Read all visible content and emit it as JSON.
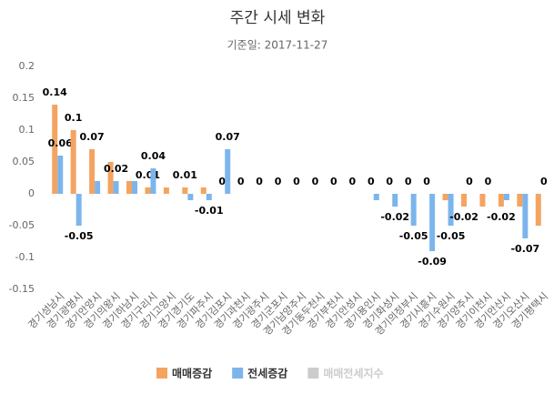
{
  "chart_data": {
    "type": "bar",
    "title": "주간 시세 변화",
    "subtitle": "기준일: 2017-11-27",
    "categories": [
      "경기성남시",
      "경기광명시",
      "경기안양시",
      "경기의왕시",
      "경기하남시",
      "경기구리시",
      "경기고양시",
      "경기경기도",
      "경기파주시",
      "경기김포시",
      "경기과천시",
      "경기광주시",
      "경기군포시",
      "경기남양주시",
      "경기동두천시",
      "경기부천시",
      "경기안성시",
      "경기용인시",
      "경기화성시",
      "경기의정부시",
      "경기시흥시",
      "경기수원시",
      "경기양주시",
      "경기이천시",
      "경기안산시",
      "경기오산시",
      "경기평택시"
    ],
    "series": [
      {
        "name": "매매증감",
        "color": "#f4a460",
        "values": [
          0.14,
          0.1,
          0.07,
          0.05,
          0.02,
          0.01,
          0.01,
          0.01,
          0.01,
          0,
          0,
          0,
          0,
          0,
          0,
          0,
          0,
          0,
          0,
          0,
          0,
          -0.01,
          -0.02,
          -0.02,
          -0.02,
          -0.02,
          -0.05
        ],
        "value_labels": [
          "0.14",
          "0.1",
          "0.07",
          null,
          null,
          "0.01",
          null,
          "0.01",
          null,
          "0",
          "0",
          "0",
          "0",
          "0",
          "0",
          "0",
          "0",
          "0",
          "0",
          "0",
          "0",
          null,
          "-0.02",
          null,
          "-0.02",
          null,
          null
        ]
      },
      {
        "name": "전세증감",
        "color": "#7cb5ec",
        "values": [
          0.06,
          -0.05,
          0.02,
          0.02,
          0.02,
          0.04,
          0,
          -0.01,
          -0.01,
          0.07,
          0,
          0,
          0,
          0,
          0,
          0,
          0,
          -0.01,
          -0.02,
          -0.05,
          -0.09,
          -0.05,
          0,
          0,
          -0.01,
          -0.07,
          0
        ],
        "value_labels": [
          "0.06",
          "-0.05",
          null,
          "0.02",
          null,
          "0.04",
          null,
          null,
          "-0.01",
          "0.07",
          null,
          null,
          null,
          null,
          null,
          null,
          null,
          null,
          "-0.02",
          "-0.05",
          "-0.09",
          "-0.05",
          "0",
          "0",
          null,
          "-0.07",
          "0"
        ]
      },
      {
        "name": "매매전세지수",
        "color": "#cccccc",
        "hidden": true,
        "values": [
          null,
          null,
          null,
          null,
          null,
          null,
          null,
          null,
          null,
          null,
          null,
          null,
          null,
          null,
          null,
          null,
          null,
          null,
          null,
          null,
          null,
          null,
          null,
          null,
          null,
          null,
          null
        ]
      }
    ],
    "ylim": [
      -0.15,
      0.2
    ],
    "yticks": [
      0.2,
      0.15,
      0.1,
      0.05,
      0,
      -0.05,
      -0.1,
      -0.15
    ]
  }
}
